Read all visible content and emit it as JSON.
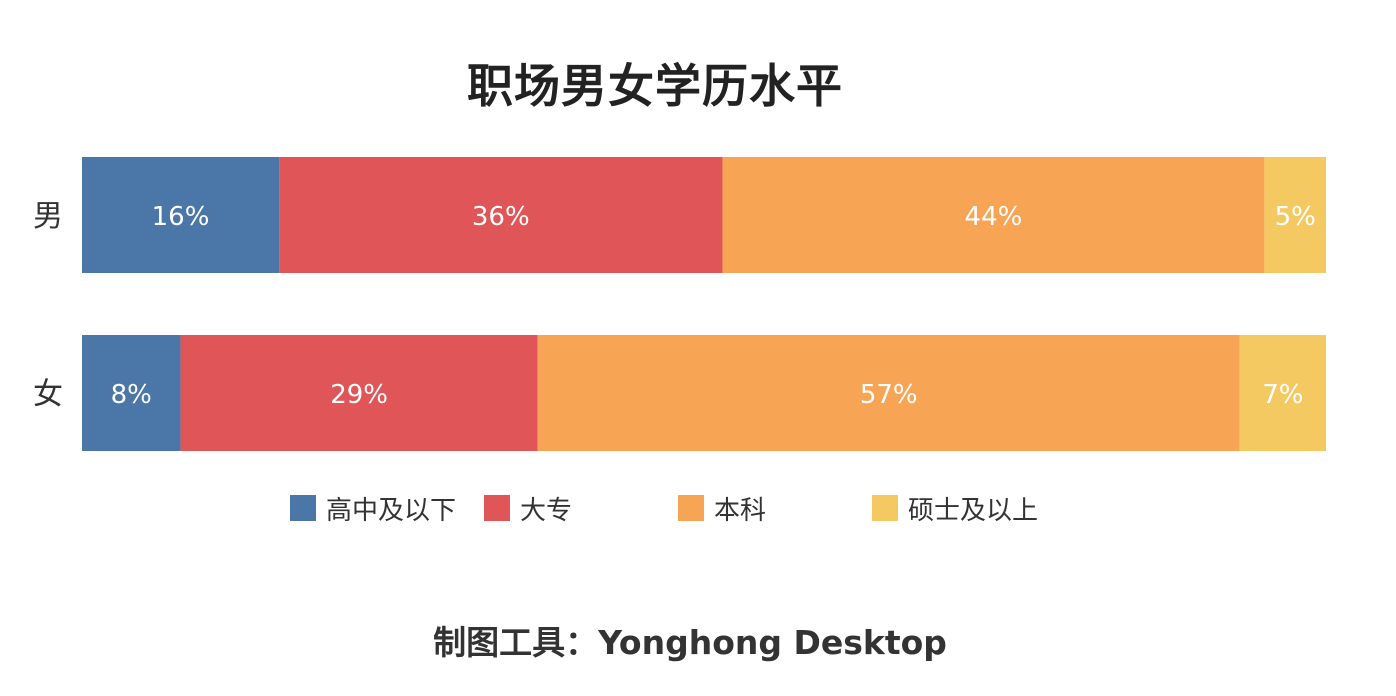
{
  "chart_data": {
    "type": "bar",
    "orientation": "horizontal",
    "stacked": true,
    "title": "职场男女学历水平",
    "categories": [
      "男",
      "女"
    ],
    "series": [
      {
        "name": "高中及以下",
        "color": "#4a76a8",
        "values": [
          16,
          8
        ],
        "labels": [
          "16%",
          "8%"
        ]
      },
      {
        "name": "大专",
        "color": "#e05557",
        "values": [
          36,
          29
        ],
        "labels": [
          "36%",
          "29%"
        ]
      },
      {
        "name": "本科",
        "color": "#f7a455",
        "values": [
          44,
          57
        ],
        "labels": [
          "44%",
          "57%"
        ]
      },
      {
        "name": "硕士及以上",
        "color": "#f4c962",
        "values": [
          5,
          7
        ],
        "labels": [
          "5%",
          "7%"
        ]
      }
    ],
    "legend_position": "bottom",
    "grid": false
  },
  "footer": "制图工具：Yonghong Desktop"
}
